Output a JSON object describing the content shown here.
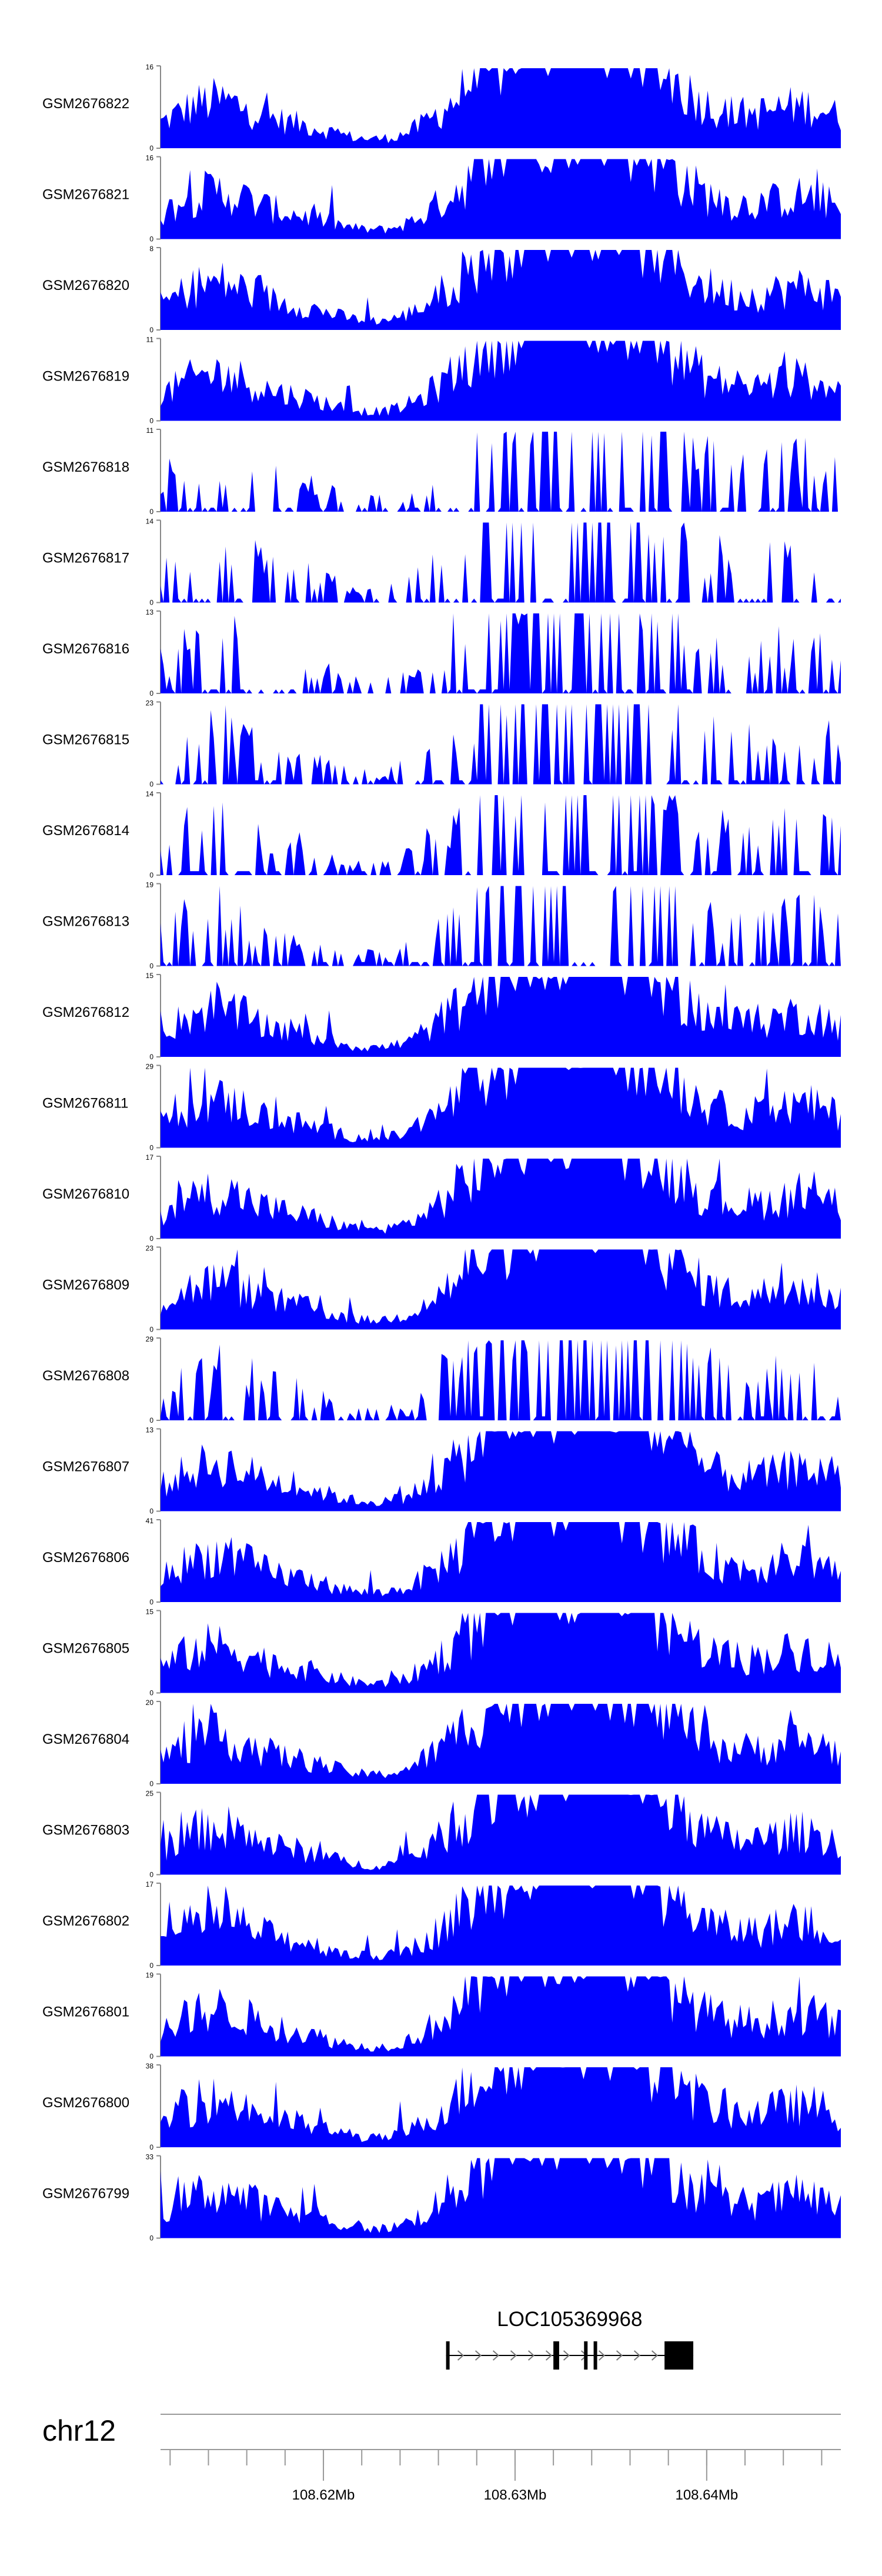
{
  "chart_data": {
    "type": "area",
    "color": "#0000ff",
    "tracks": [
      {
        "name": "GSM2676822",
        "ymax_label": "16",
        "ymin_label": "0",
        "ymax": 16
      },
      {
        "name": "GSM2676821",
        "ymax_label": "16",
        "ymin_label": "0",
        "ymax": 16
      },
      {
        "name": "GSM2676820",
        "ymax_label": "8",
        "ymin_label": "0",
        "ymax": 8
      },
      {
        "name": "GSM2676819",
        "ymax_label": "11",
        "ymin_label": "0",
        "ymax": 11
      },
      {
        "name": "GSM2676818",
        "ymax_label": "11",
        "ymin_label": "0",
        "ymax": 11
      },
      {
        "name": "GSM2676817",
        "ymax_label": "14",
        "ymin_label": "0",
        "ymax": 14
      },
      {
        "name": "GSM2676816",
        "ymax_label": "13",
        "ymin_label": "0",
        "ymax": 13
      },
      {
        "name": "GSM2676815",
        "ymax_label": "23",
        "ymin_label": "0",
        "ymax": 23
      },
      {
        "name": "GSM2676814",
        "ymax_label": "14",
        "ymin_label": "0",
        "ymax": 14
      },
      {
        "name": "GSM2676813",
        "ymax_label": "19",
        "ymin_label": "0",
        "ymax": 19
      },
      {
        "name": "GSM2676812",
        "ymax_label": "15",
        "ymin_label": "0",
        "ymax": 15
      },
      {
        "name": "GSM2676811",
        "ymax_label": "29",
        "ymin_label": "0",
        "ymax": 29
      },
      {
        "name": "GSM2676810",
        "ymax_label": "17",
        "ymin_label": "0",
        "ymax": 17
      },
      {
        "name": "GSM2676809",
        "ymax_label": "23",
        "ymin_label": "0",
        "ymax": 23
      },
      {
        "name": "GSM2676808",
        "ymax_label": "29",
        "ymin_label": "0",
        "ymax": 29
      },
      {
        "name": "GSM2676807",
        "ymax_label": "13",
        "ymin_label": "0",
        "ymax": 13
      },
      {
        "name": "GSM2676806",
        "ymax_label": "41",
        "ymin_label": "0",
        "ymax": 41
      },
      {
        "name": "GSM2676805",
        "ymax_label": "15",
        "ymin_label": "0",
        "ymax": 15
      },
      {
        "name": "GSM2676804",
        "ymax_label": "20",
        "ymin_label": "0",
        "ymax": 20
      },
      {
        "name": "GSM2676803",
        "ymax_label": "25",
        "ymin_label": "0",
        "ymax": 25
      },
      {
        "name": "GSM2676802",
        "ymax_label": "17",
        "ymin_label": "0",
        "ymax": 17
      },
      {
        "name": "GSM2676801",
        "ymax_label": "19",
        "ymin_label": "0",
        "ymax": 19
      },
      {
        "name": "GSM2676800",
        "ymax_label": "38",
        "ymin_label": "0",
        "ymax": 38
      },
      {
        "name": "GSM2676799",
        "ymax_label": "33",
        "ymin_label": "0",
        "ymax": 33
      }
    ],
    "x_axis": {
      "chromosome": "chr12",
      "range_mb": [
        108.6115,
        108.647
      ],
      "tick_labels": [
        {
          "label": "108.62Mb",
          "value": 108.62
        },
        {
          "label": "108.63Mb",
          "value": 108.63
        },
        {
          "label": "108.64Mb",
          "value": 108.64
        }
      ],
      "minor_step_mb": 0.002
    },
    "gene": {
      "name": "LOC105369968",
      "start_mb": 108.6264,
      "end_mb": 108.6393,
      "strand": "+",
      "exons": [
        {
          "start_mb": 108.6264,
          "end_mb": 108.62645
        },
        {
          "start_mb": 108.632,
          "end_mb": 108.6323
        },
        {
          "start_mb": 108.6336,
          "end_mb": 108.63375
        },
        {
          "start_mb": 108.6341,
          "end_mb": 108.63415
        },
        {
          "start_mb": 108.6378,
          "end_mb": 108.6393
        }
      ]
    },
    "signal_profile": {
      "peak_centers_mb": [
        108.6125,
        108.6148,
        108.6187,
        108.6272,
        108.6298,
        108.6313,
        108.6332,
        108.6348,
        108.6365,
        108.6382,
        108.6412,
        108.6445,
        108.6462
      ],
      "peak_weights": [
        0.25,
        0.55,
        0.25,
        0.5,
        0.7,
        0.85,
        0.95,
        0.9,
        0.6,
        0.45,
        0.3,
        0.35,
        0.3
      ]
    }
  }
}
